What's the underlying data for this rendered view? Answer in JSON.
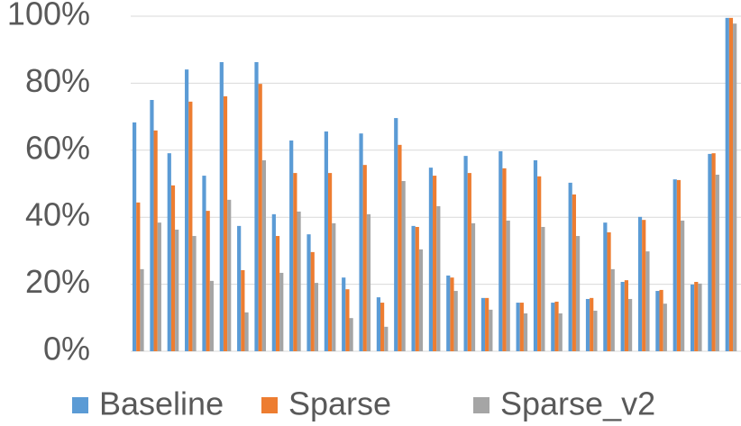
{
  "chart_data": {
    "type": "bar",
    "categories": [
      null,
      null,
      null,
      null,
      null,
      null,
      null,
      null,
      null,
      null,
      null,
      null,
      null,
      null,
      null,
      null,
      null,
      null,
      null,
      null,
      null,
      null,
      null,
      null,
      null,
      null,
      null,
      null,
      null,
      null,
      null,
      null,
      null,
      null,
      null
    ],
    "series": [
      {
        "name": "Baseline",
        "color": "#5b9bd5",
        "values": [
          68.3,
          75,
          59.1,
          84.1,
          52.4,
          86.3,
          37.4,
          86.3,
          40.9,
          62.9,
          34.9,
          65.6,
          22,
          65,
          16.1,
          69.6,
          37.4,
          54.8,
          22.6,
          58.3,
          15.9,
          59.7,
          14.5,
          57,
          14.5,
          50.3,
          15.6,
          38.4,
          20.7,
          40.1,
          18,
          51.3,
          19.9,
          58.9,
          99.5
        ]
      },
      {
        "name": "Sparse",
        "color": "#ed7d31",
        "values": [
          44.4,
          65.9,
          49.5,
          74.5,
          41.9,
          76.1,
          24.2,
          79.8,
          34.4,
          53.2,
          29.6,
          53.2,
          18.5,
          55.6,
          14.5,
          61.6,
          37.1,
          52.4,
          22,
          53.2,
          15.9,
          54.6,
          14.5,
          52.2,
          14.8,
          46.8,
          15.9,
          35.5,
          21.2,
          39.2,
          18.3,
          51.1,
          20.7,
          59.1,
          99.5
        ]
      },
      {
        "name": "Sparse_v2",
        "color": "#a5a5a5",
        "values": [
          24.5,
          38.4,
          36.3,
          34.4,
          21,
          45.2,
          11.6,
          57,
          23.4,
          41.7,
          20.4,
          38.2,
          9.9,
          40.9,
          7.3,
          50.8,
          30.4,
          43.3,
          18,
          38.2,
          12.4,
          39,
          11.3,
          37.1,
          11.3,
          34.4,
          12.1,
          24.5,
          15.6,
          29.8,
          14.2,
          39,
          20.2,
          52.7,
          97.8
        ]
      }
    ],
    "ylim": [
      0,
      100
    ],
    "yticks": [
      {
        "value": 0,
        "label": "0%"
      },
      {
        "value": 20,
        "label": "20%"
      },
      {
        "value": 40,
        "label": "40%"
      },
      {
        "value": 60,
        "label": "60%"
      },
      {
        "value": 80,
        "label": "80%"
      },
      {
        "value": 100,
        "label": "100%"
      }
    ],
    "grid": true
  }
}
